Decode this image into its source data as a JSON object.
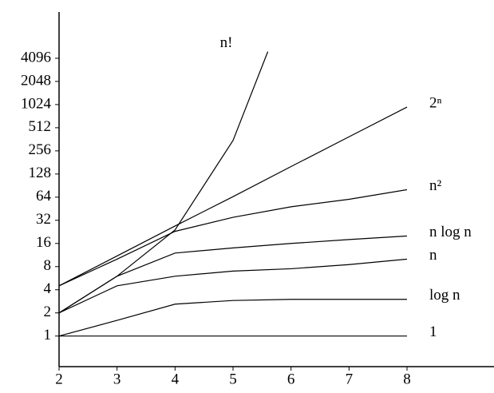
{
  "chart_data": {
    "type": "line",
    "x": [
      2,
      3,
      4,
      5,
      6,
      7,
      8
    ],
    "series": [
      {
        "name": "1",
        "color": "#000000",
        "values": [
          1,
          1,
          1,
          1,
          1,
          1,
          1
        ]
      },
      {
        "name": "log n",
        "color": "#000000",
        "values": [
          1,
          1.6,
          2.6,
          2.9,
          3,
          3,
          3
        ]
      },
      {
        "name": "n",
        "color": "#000000",
        "values": [
          2,
          4.5,
          6,
          7,
          7.5,
          8.5,
          10
        ]
      },
      {
        "name": "n log n",
        "color": "#000000",
        "values": [
          2,
          6,
          12,
          14,
          16,
          18,
          20
        ]
      },
      {
        "name": "n²",
        "color": "#000000",
        "values": [
          4.5,
          10,
          23,
          35,
          48,
          60,
          80
        ]
      },
      {
        "name": "2ⁿ",
        "color": "#000000",
        "values": [
          4.5,
          11,
          27,
          65,
          160,
          390,
          950
        ]
      },
      {
        "name": "n!",
        "color": "#000000",
        "x": [
          2,
          3,
          4,
          5,
          5.6
        ],
        "values": [
          2,
          6,
          24,
          350,
          5000
        ]
      }
    ],
    "xlim": [
      2,
      9.5
    ],
    "xticks": [
      2,
      3,
      4,
      5,
      6,
      7,
      8
    ],
    "ylim": [
      0.4,
      16384
    ],
    "yticks": [
      1,
      2,
      4,
      8,
      16,
      32,
      64,
      128,
      256,
      512,
      1024,
      2048,
      4096
    ],
    "log_scale_y": true,
    "grid": false
  }
}
